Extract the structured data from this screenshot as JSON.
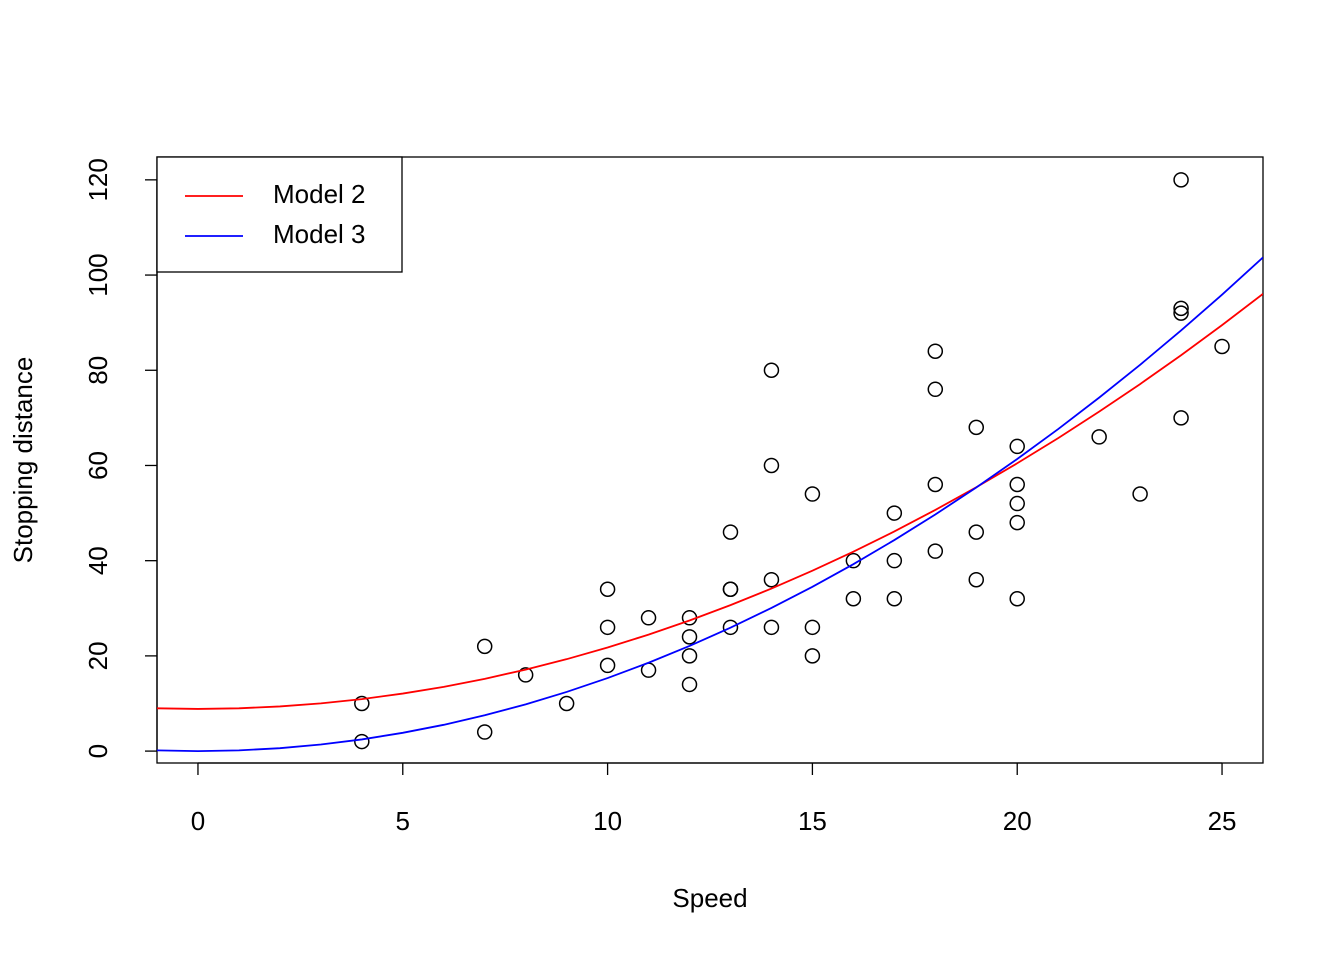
{
  "chart_data": {
    "type": "scatter",
    "x_label": "Speed",
    "y_label": "Stopping distance",
    "xlim": [
      -1,
      26
    ],
    "ylim": [
      -2.5,
      124.8
    ],
    "xticks": [
      0,
      5,
      10,
      15,
      20,
      25
    ],
    "yticks": [
      0,
      20,
      40,
      60,
      80,
      100,
      120
    ],
    "legend": "top-left",
    "points": {
      "color": "#000000",
      "x": [
        4,
        4,
        7,
        7,
        8,
        9,
        10,
        10,
        10,
        11,
        11,
        12,
        12,
        12,
        12,
        13,
        13,
        13,
        13,
        14,
        14,
        14,
        14,
        15,
        15,
        15,
        16,
        16,
        17,
        17,
        17,
        18,
        18,
        18,
        18,
        19,
        19,
        19,
        20,
        20,
        20,
        20,
        20,
        22,
        23,
        24,
        24,
        24,
        24,
        25
      ],
      "values": [
        2,
        10,
        4,
        22,
        16,
        10,
        18,
        26,
        34,
        17,
        28,
        14,
        20,
        24,
        28,
        26,
        34,
        34,
        46,
        26,
        36,
        60,
        80,
        20,
        26,
        54,
        32,
        40,
        32,
        40,
        50,
        42,
        56,
        76,
        84,
        36,
        46,
        68,
        32,
        48,
        52,
        56,
        64,
        66,
        54,
        70,
        92,
        93,
        120,
        85
      ]
    },
    "series": [
      {
        "name": "Model 2",
        "color": "#ff0000",
        "x": [
          -1,
          0,
          1,
          2,
          3,
          4,
          5,
          6,
          7,
          8,
          9,
          10,
          11,
          12,
          13,
          14,
          15,
          16,
          17,
          18,
          19,
          20,
          21,
          22,
          23,
          24,
          25,
          26
        ],
        "values": [
          8.99,
          8.86,
          8.99,
          9.38,
          10.02,
          10.92,
          12.09,
          13.5,
          15.18,
          17.12,
          19.31,
          21.76,
          24.47,
          27.44,
          30.66,
          34.14,
          37.89,
          41.88,
          46.14,
          50.66,
          55.43,
          60.46,
          65.75,
          71.3,
          77.1,
          83.16,
          89.49,
          96.06
        ]
      },
      {
        "name": "Model 3",
        "color": "#0000ff",
        "x": [
          -1,
          0,
          1,
          2,
          3,
          4,
          5,
          6,
          7,
          8,
          9,
          10,
          11,
          12,
          13,
          14,
          15,
          16,
          17,
          18,
          19,
          20,
          21,
          22,
          23,
          24,
          25,
          26
        ],
        "values": [
          0.15,
          0,
          0.15,
          0.61,
          1.38,
          2.45,
          3.84,
          5.52,
          7.52,
          9.82,
          12.43,
          15.34,
          18.56,
          22.09,
          25.92,
          30.07,
          34.52,
          39.27,
          44.33,
          49.7,
          55.38,
          61.36,
          67.65,
          74.25,
          81.15,
          88.36,
          95.88,
          103.7
        ]
      }
    ]
  }
}
